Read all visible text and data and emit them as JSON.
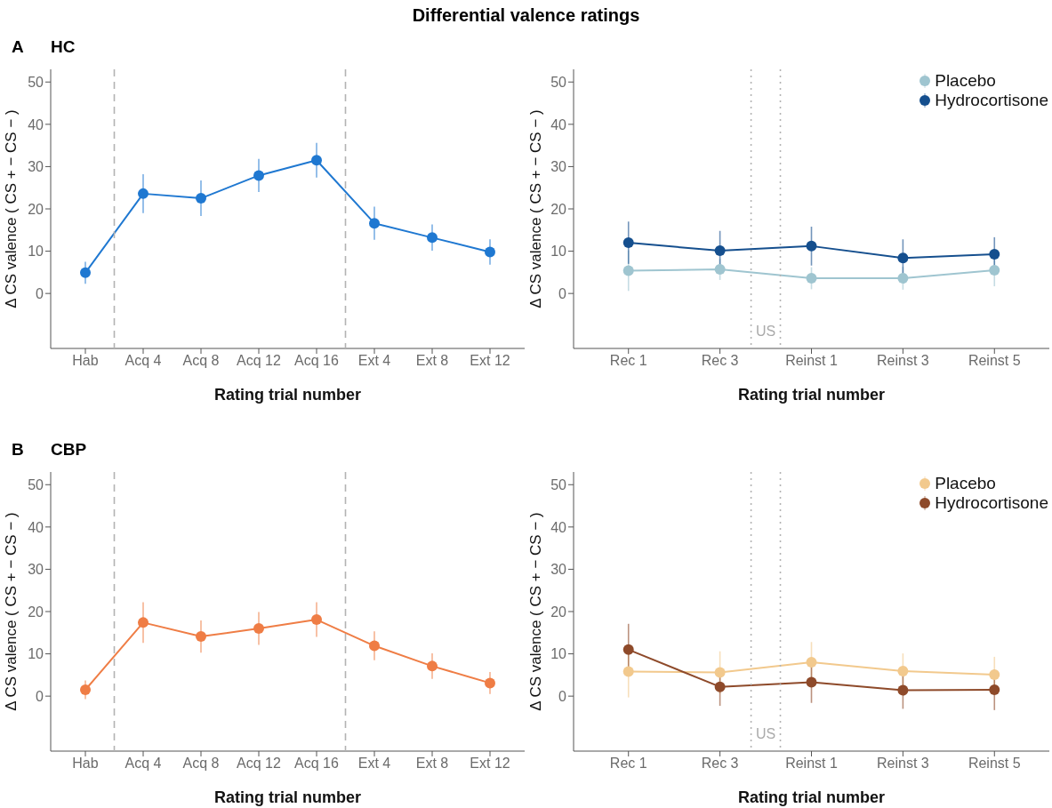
{
  "chart_data": [
    {
      "type": "line",
      "title": "Differential valence ratings",
      "subtitle": "HC",
      "annotations": [
        "A"
      ],
      "xlabel": "Rating trial number",
      "ylabel": "Δ CS valence  ( CS + − CS − )",
      "categories": [
        "Hab",
        "Acq 4",
        "Acq 8",
        "Acq 12",
        "Acq 16",
        "Ext 4",
        "Ext 8",
        "Ext 12"
      ],
      "ylim": [
        -13,
        53
      ],
      "yticks": [
        0,
        10,
        20,
        30,
        40,
        50
      ],
      "marker": "circle",
      "line_style": "solid",
      "series": [
        {
          "color": "#1f78d1",
          "values": [
            4.9,
            23.6,
            22.5,
            27.9,
            31.5,
            16.6,
            13.2,
            9.8
          ],
          "errors": [
            2.6,
            4.6,
            4.2,
            3.9,
            4.1,
            3.9,
            3.1,
            3.0
          ]
        }
      ]
    },
    {
      "type": "line",
      "xlabel": "Rating trial number",
      "ylabel": "Δ CS valence  ( CS + − CS − )",
      "categories": [
        "Rec 1",
        "Rec 3",
        "Reinst 1",
        "Reinst 3",
        "Reinst 5"
      ],
      "ylim": [
        -13,
        53
      ],
      "yticks": [
        0,
        10,
        20,
        30,
        40,
        50
      ],
      "marker": "circle",
      "line_style": "solid",
      "legend": "top right",
      "series": [
        {
          "name": "Placebo",
          "color": "#9fc5d0",
          "values": [
            5.4,
            5.7,
            3.6,
            3.6,
            5.5
          ],
          "errors": [
            4.8,
            2.5,
            2.6,
            2.7,
            3.8
          ]
        },
        {
          "name": "Hydrocortisone",
          "color": "#154f8e",
          "values": [
            12.0,
            10.1,
            11.2,
            8.4,
            9.3
          ],
          "errors": [
            5.0,
            4.7,
            4.6,
            4.4,
            4.0
          ]
        }
      ],
      "annotations": [
        "US"
      ]
    },
    {
      "type": "line",
      "subtitle": "CBP",
      "annotations": [
        "B"
      ],
      "xlabel": "Rating trial number",
      "ylabel": "Δ CS valence  ( CS + − CS − )",
      "categories": [
        "Hab",
        "Acq 4",
        "Acq 8",
        "Acq 12",
        "Acq 16",
        "Ext 4",
        "Ext 8",
        "Ext 12"
      ],
      "ylim": [
        -13,
        53
      ],
      "yticks": [
        0,
        10,
        20,
        30,
        40,
        50
      ],
      "marker": "circle",
      "line_style": "solid",
      "series": [
        {
          "color": "#ef7d45",
          "values": [
            1.5,
            17.4,
            14.1,
            16.0,
            18.1,
            11.9,
            7.1,
            3.1
          ],
          "errors": [
            2.2,
            4.8,
            3.8,
            3.9,
            4.1,
            3.4,
            3.0,
            2.6
          ]
        }
      ]
    },
    {
      "type": "line",
      "xlabel": "Rating trial number",
      "ylabel": "Δ CS valence  ( CS + − CS − )",
      "categories": [
        "Rec 1",
        "Rec 3",
        "Reinst 1",
        "Reinst 3",
        "Reinst 5"
      ],
      "ylim": [
        -13,
        53
      ],
      "yticks": [
        0,
        10,
        20,
        30,
        40,
        50
      ],
      "marker": "circle",
      "line_style": "solid",
      "legend": "top right",
      "series": [
        {
          "name": "Placebo",
          "color": "#f2c98d",
          "values": [
            5.8,
            5.6,
            8.0,
            5.9,
            5.1
          ],
          "errors": [
            6.1,
            5.0,
            4.8,
            4.2,
            4.2
          ]
        },
        {
          "name": "Hydrocortisone",
          "color": "#8e4a2a",
          "values": [
            11.0,
            2.2,
            3.3,
            1.4,
            1.5
          ],
          "errors": [
            6.1,
            4.5,
            4.9,
            4.4,
            4.8
          ]
        }
      ],
      "annotations": [
        "US"
      ]
    }
  ]
}
